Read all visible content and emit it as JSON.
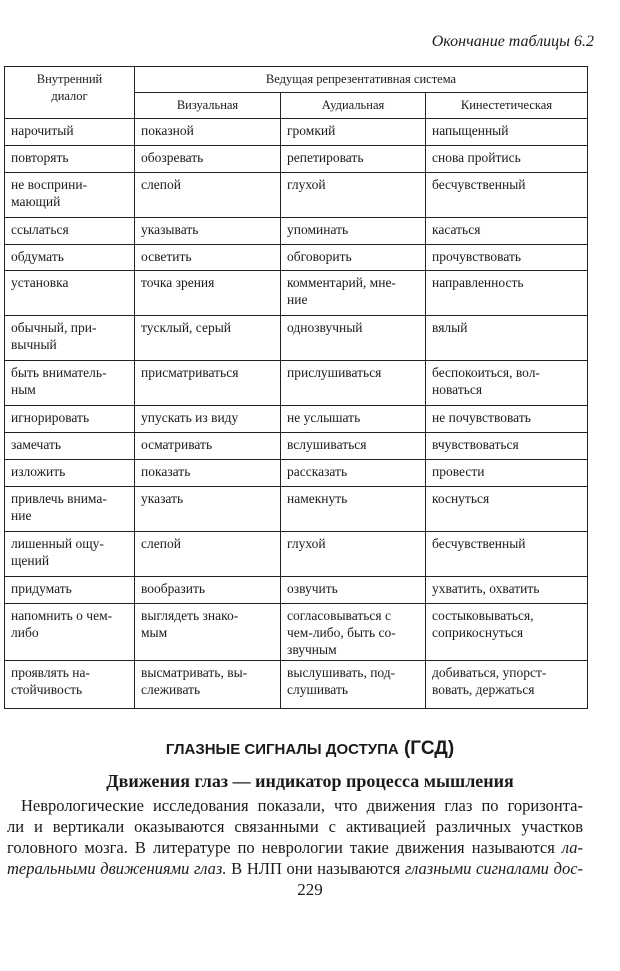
{
  "caption": "Окончание таблицы 6.2",
  "table": {
    "header_first": "Внутренний\nдиалог",
    "header_group": "Ведущая репрезентативная система",
    "header_cols": [
      "Визуальная",
      "Аудиальная",
      "Кинестетическая"
    ],
    "rows": [
      [
        "нарочитый",
        "показной",
        "громкий",
        "напыщенный"
      ],
      [
        "повторять",
        "обозревать",
        "репетировать",
        "снова пройтись"
      ],
      [
        "не восприни-\nмающий",
        "слепой",
        "глухой",
        "бесчувственный"
      ],
      [
        "ссылаться",
        "указывать",
        "упоминать",
        "касаться"
      ],
      [
        "обдумать",
        "осветить",
        "обговорить",
        "прочувствовать"
      ],
      [
        "установка",
        "точка зрения",
        "комментарий, мне-\nние",
        "направленность"
      ],
      [
        "обычный, при-\nвычный",
        "тусклый, серый",
        "однозвучный",
        "вялый"
      ],
      [
        "быть вниматель-\nным",
        "присматриваться",
        "прислушиваться",
        "беспокоиться, вол-\nноваться"
      ],
      [
        "игнорировать",
        "упускать из виду",
        "не услышать",
        "не почувствовать"
      ],
      [
        "замечать",
        "осматривать",
        "вслушиваться",
        "вчувствоваться"
      ],
      [
        "изложить",
        "показать",
        "рассказать",
        "провести"
      ],
      [
        "привлечь внима-\nние",
        "указать",
        "намекнуть",
        "коснуться"
      ],
      [
        "лишенный ощу-\nщений",
        "слепой",
        "глухой",
        "бесчувственный"
      ],
      [
        "придумать",
        "вообразить",
        "озвучить",
        "ухватить, охватить"
      ],
      [
        "напомнить о чем-\nлибо",
        "выглядеть знако-\nмым",
        "согласовываться с\nчем-либо, быть со-\nзвучным",
        "состыковываться,\nсоприкоснуться"
      ],
      [
        "проявлять на-\nстойчивость",
        "высматривать, вы-\nслеживать",
        "выслушивать, под-\nслушивать",
        "добиваться, упорст-\nвовать, держаться"
      ]
    ]
  },
  "section_title": {
    "main": "Глазные сигналы доступа",
    "abbr": "(ГСД)"
  },
  "subsection_title": "Движения глаз — индикатор процесса мышления",
  "paragraph": {
    "l1": "Неврологические исследования показали, что движения глаз по горизонта-",
    "l2": "ли и вертикали оказываются связанными с активацией различных участков",
    "l3a": "головного мозга. В литературе по неврологии такие движения называются ",
    "l3b": "ла-",
    "l4a": "теральными движениями глаз.",
    "l4b": " В НЛП они называются ",
    "l4c": "глазными сигналами дос-"
  },
  "page_number": "229"
}
